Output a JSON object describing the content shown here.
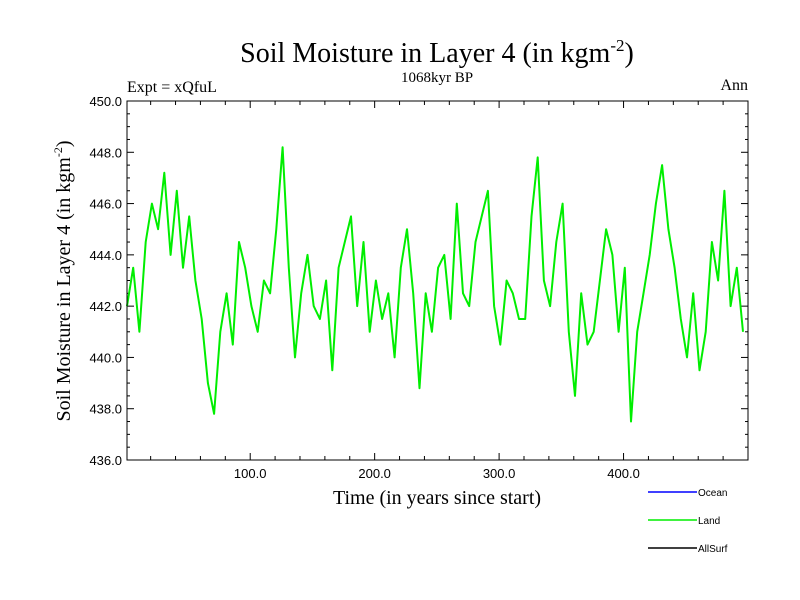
{
  "chart_data": {
    "type": "line",
    "title_main": "Soil Moisture in Layer 4 (in kgm",
    "title_sup": "-2",
    "title_end": ")",
    "subtitle": "1068kyr BP",
    "left_label": "Expt = xQfuL",
    "right_label": "Ann",
    "xlabel": "Time (in years since start)",
    "ylabel_main": "Soil Moisture in Layer 4 (in kgm",
    "ylabel_sup": "-2",
    "ylabel_end": ")",
    "xlim": [
      1,
      500
    ],
    "ylim": [
      436.0,
      450.0
    ],
    "x_ticks": [
      100,
      200,
      300,
      400
    ],
    "x_tick_labels": [
      "100.0",
      "200.0",
      "300.0",
      "400.0"
    ],
    "y_ticks": [
      436,
      438,
      440,
      442,
      444,
      446,
      448,
      450
    ],
    "y_tick_labels": [
      "436.0",
      "438.0",
      "440.0",
      "442.0",
      "444.0",
      "446.0",
      "448.0",
      "450.0"
    ],
    "legend": [
      {
        "name": "Ocean",
        "color": "#0000ff"
      },
      {
        "name": "Land",
        "color": "#00ee00"
      },
      {
        "name": "AllSurf",
        "color": "#000000"
      }
    ],
    "series": [
      {
        "name": "Land",
        "color": "#00ee00",
        "x_start": 1,
        "x_step": 5,
        "values": [
          442.0,
          443.5,
          441.0,
          444.5,
          446.0,
          445.0,
          447.2,
          444.0,
          446.5,
          443.5,
          445.5,
          443.0,
          441.5,
          439.0,
          437.8,
          441.0,
          442.5,
          440.5,
          444.5,
          443.5,
          442.0,
          441.0,
          443.0,
          442.5,
          445.0,
          448.2,
          443.5,
          440.0,
          442.5,
          444.0,
          442.0,
          441.5,
          443.0,
          439.5,
          443.5,
          444.5,
          445.5,
          442.0,
          444.5,
          441.0,
          443.0,
          441.5,
          442.5,
          440.0,
          443.5,
          445.0,
          442.5,
          438.8,
          442.5,
          441.0,
          443.5,
          444.0,
          441.5,
          446.0,
          442.5,
          442.0,
          444.5,
          445.5,
          446.5,
          442.0,
          440.5,
          443.0,
          442.5,
          441.5,
          441.5,
          445.5,
          447.8,
          443.0,
          442.0,
          444.5,
          446.0,
          441.0,
          438.5,
          442.5,
          440.5,
          441.0,
          443.0,
          445.0,
          444.0,
          441.0,
          443.5,
          437.5,
          441.0,
          442.5,
          444.0,
          446.0,
          447.5,
          445.0,
          443.5,
          441.5,
          440.0,
          442.5,
          439.5,
          441.0,
          444.5,
          443.0,
          446.5,
          442.0,
          443.5,
          441.0
        ]
      }
    ]
  }
}
